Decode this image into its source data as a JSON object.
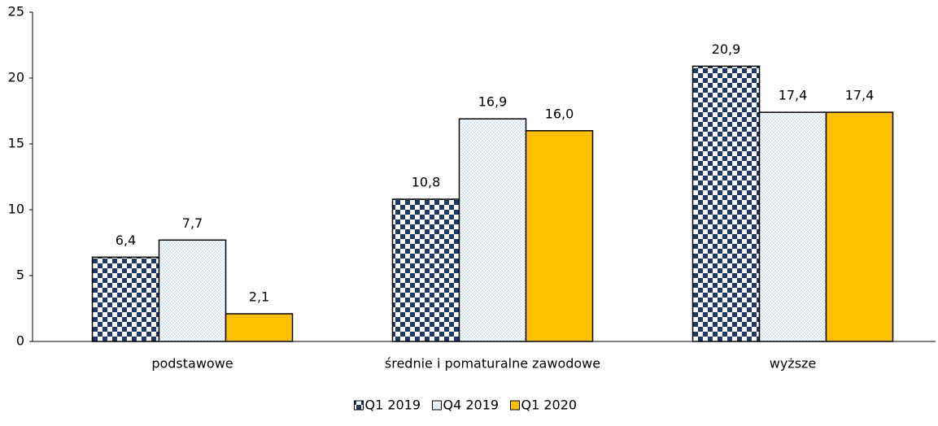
{
  "chart_data": {
    "type": "bar",
    "categories": [
      "podstawowe",
      "średnie i pomaturalne zawodowe",
      "wyższe"
    ],
    "series": [
      {
        "name": "Q1 2019",
        "color": "#1f3864",
        "pattern": "checker",
        "values": [
          6.4,
          10.8,
          20.9
        ],
        "value_labels": [
          "6,4",
          "10,8",
          "20,9"
        ]
      },
      {
        "name": "Q4 2019",
        "color": "#9dc3e6",
        "pattern": "dots",
        "values": [
          7.7,
          16.9,
          17.4
        ],
        "value_labels": [
          "7,7",
          "16,9",
          "17,4"
        ]
      },
      {
        "name": "Q1 2020",
        "color": "#ffc000",
        "values": [
          2.1,
          16.0,
          17.4
        ],
        "value_labels": [
          "2,1",
          "16,0",
          "17,4"
        ]
      }
    ],
    "ylim": [
      0,
      25
    ],
    "yticks": [
      0,
      5,
      10,
      15,
      20,
      25
    ],
    "grid": false,
    "legend": "bottom"
  }
}
